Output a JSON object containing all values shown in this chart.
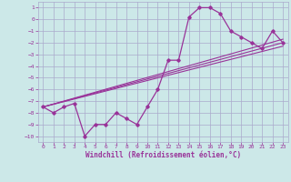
{
  "title": "",
  "xlabel": "Windchill (Refroidissement éolien,°C)",
  "ylabel": "",
  "bg_color": "#cce8e8",
  "grid_color": "#aaaacc",
  "line_color": "#993399",
  "xlim": [
    -0.5,
    23.5
  ],
  "ylim": [
    -10.5,
    1.5
  ],
  "xticks": [
    0,
    1,
    2,
    3,
    4,
    5,
    6,
    7,
    8,
    9,
    10,
    11,
    12,
    13,
    14,
    15,
    16,
    17,
    18,
    19,
    20,
    21,
    22,
    23
  ],
  "yticks": [
    1,
    0,
    -1,
    -2,
    -3,
    -4,
    -5,
    -6,
    -7,
    -8,
    -9,
    -10
  ],
  "series1_x": [
    0,
    1,
    2,
    3,
    4,
    5,
    6,
    7,
    8,
    9,
    10,
    11,
    12,
    13,
    14,
    15,
    16,
    17,
    18,
    19,
    20,
    21,
    22,
    23
  ],
  "series1_y": [
    -7.5,
    -8.0,
    -7.5,
    -7.2,
    -10.0,
    -9.0,
    -9.0,
    -8.0,
    -8.5,
    -9.0,
    -7.5,
    -6.0,
    -3.5,
    -3.5,
    0.2,
    1.0,
    1.0,
    0.5,
    -1.0,
    -1.5,
    -2.0,
    -2.5,
    -1.0,
    -2.0
  ],
  "series2_x": [
    0,
    23
  ],
  "series2_y": [
    -7.5,
    -2.0
  ],
  "series3_x": [
    0,
    23
  ],
  "series3_y": [
    -7.5,
    -1.7
  ],
  "series4_x": [
    0,
    23
  ],
  "series4_y": [
    -7.5,
    -2.3
  ],
  "tick_fontsize": 4.5,
  "xlabel_fontsize": 5.5
}
